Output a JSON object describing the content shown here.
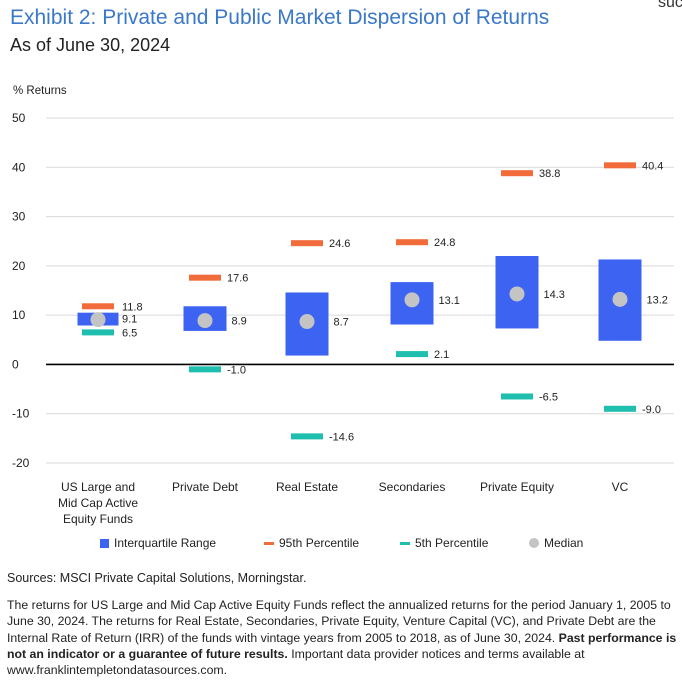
{
  "header": {
    "title": "Exhibit 2: Private and Public Market Dispersion of Returns",
    "subtitle": "As of June 30, 2024",
    "corner_text": "suc"
  },
  "colors": {
    "iqr": "#3d63f2",
    "p95": "#f26b3a",
    "p5": "#1fbfb0",
    "median": "#c4c4c4",
    "title": "#3a78c9"
  },
  "chart_data": {
    "type": "box",
    "ylabel": "% Returns",
    "ylim": [
      -20,
      50
    ],
    "yticks": [
      50,
      40,
      30,
      20,
      10,
      0,
      -10,
      -20
    ],
    "grid": true,
    "legend_position": "bottom",
    "categories": [
      "US Large and\nMid Cap Active\nEquity Funds",
      "Private Debt",
      "Real Estate",
      "Secondaries",
      "Private Equity",
      "VC"
    ],
    "series": [
      {
        "name": "Interquartile Range",
        "ranges": [
          [
            7.9,
            10.5
          ],
          [
            6.8,
            11.8
          ],
          [
            1.8,
            14.6
          ],
          [
            8.1,
            16.7
          ],
          [
            7.3,
            22.0
          ],
          [
            4.8,
            21.3
          ]
        ]
      },
      {
        "name": "95th Percentile",
        "values": [
          11.8,
          17.6,
          24.6,
          24.8,
          38.8,
          40.4
        ]
      },
      {
        "name": "5th Percentile",
        "values": [
          6.5,
          -1.0,
          -14.6,
          2.1,
          -6.5,
          -9.0
        ]
      },
      {
        "name": "Median",
        "values": [
          9.1,
          8.9,
          8.7,
          13.1,
          14.3,
          13.2
        ]
      }
    ],
    "data_labels": {
      "p95": [
        "11.8",
        "17.6",
        "24.6",
        "24.8",
        "38.8",
        "40.4"
      ],
      "median": [
        "9.1",
        "8.9",
        "8.7",
        "13.1",
        "14.3",
        "13.2"
      ],
      "p5": [
        "6.5",
        "-1.0",
        "-14.6",
        "2.1",
        "-6.5",
        "-9.0"
      ]
    }
  },
  "legend": {
    "iqr": "Interquartile Range",
    "p95": "95th Percentile",
    "p5": "5th Percentile",
    "median": "Median"
  },
  "footer": {
    "sources": "Sources: MSCI Private Capital Solutions, Morningstar.",
    "note_text": "The returns for US Large and Mid Cap Active Equity Funds reflect the annualized returns for the period January 1, 2005 to June 30, 2024. The returns for Real Estate, Secondaries, Private Equity, Venture Capital (VC), and Private Debt are the Internal Rate of Return (IRR) of the funds with vintage years from 2005 to 2018, as of June 30, 2024.",
    "note_bold": "Past performance is not an indicator or a guarantee of future results.",
    "note_tail": "Important data provider notices and terms available at www.franklintempletondatasources.com."
  }
}
